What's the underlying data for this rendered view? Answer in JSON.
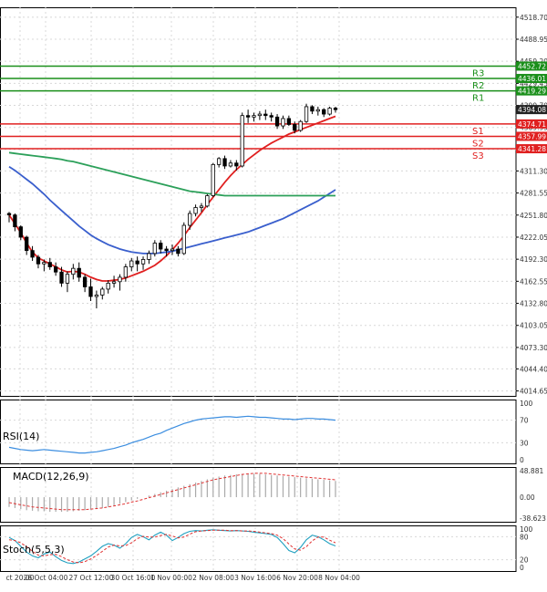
{
  "colors": {
    "candle": "#000000",
    "candle_up_fill": "#ffffff",
    "candle_down_fill": "#000000",
    "ma_fast": "#e02020",
    "ma_mid": "#3a5fcd",
    "ma_slow": "#2ca05a",
    "resistance": "#1a8f1a",
    "support": "#e02020",
    "price_tag": "#222222",
    "rsi": "#3c8ee0",
    "macd_hist": "#aaaaaa",
    "macd_signal": "#e03030",
    "stoch_k": "#20a0c0",
    "stoch_d": "#e03030",
    "grid": "#d8d8d8",
    "axis_text": "#333333"
  },
  "chart_data": {
    "type": "candlestick",
    "price_axis": {
      "ticks": [
        "4518.70",
        "4488.95",
        "4459.20",
        "4429.45",
        "4399.70",
        "4369.95",
        "4340.20",
        "4311.30",
        "4281.55",
        "4251.80",
        "4222.05",
        "4192.30",
        "4162.55",
        "4132.80",
        "4103.05",
        "4073.30",
        "4044.40",
        "4014.65"
      ],
      "ylim": [
        4008,
        4532
      ]
    },
    "time_axis": {
      "labels": [
        "ct 20:00",
        "26 Oct 04:00",
        "27 Oct 12:00",
        "30 Oct 16:00",
        "1 Nov 00:00",
        "2 Nov 08:00",
        "3 Nov 16:00",
        "6 Nov 20:00",
        "8 Nov 04:00"
      ]
    },
    "candles": [
      [
        4254,
        4256,
        4242,
        4252
      ],
      [
        4252,
        4254,
        4230,
        4236
      ],
      [
        4236,
        4238,
        4218,
        4222
      ],
      [
        4222,
        4224,
        4198,
        4204
      ],
      [
        4204,
        4210,
        4190,
        4195
      ],
      [
        4195,
        4198,
        4180,
        4186
      ],
      [
        4186,
        4192,
        4176,
        4188
      ],
      [
        4188,
        4194,
        4178,
        4182
      ],
      [
        4182,
        4188,
        4170,
        4175
      ],
      [
        4175,
        4182,
        4155,
        4160
      ],
      [
        4160,
        4176,
        4148,
        4172
      ],
      [
        4172,
        4186,
        4165,
        4180
      ],
      [
        4180,
        4188,
        4162,
        4168
      ],
      [
        4168,
        4172,
        4148,
        4155
      ],
      [
        4155,
        4166,
        4136,
        4142
      ],
      [
        4142,
        4150,
        4126,
        4144
      ],
      [
        4144,
        4155,
        4138,
        4152
      ],
      [
        4152,
        4164,
        4146,
        4160
      ],
      [
        4160,
        4170,
        4154,
        4162
      ],
      [
        4162,
        4172,
        4150,
        4168
      ],
      [
        4168,
        4186,
        4162,
        4182
      ],
      [
        4182,
        4194,
        4176,
        4190
      ],
      [
        4190,
        4196,
        4176,
        4186
      ],
      [
        4186,
        4196,
        4178,
        4192
      ],
      [
        4192,
        4204,
        4186,
        4200
      ],
      [
        4200,
        4218,
        4196,
        4214
      ],
      [
        4214,
        4218,
        4200,
        4206
      ],
      [
        4206,
        4210,
        4196,
        4204
      ],
      [
        4204,
        4212,
        4198,
        4206
      ],
      [
        4206,
        4210,
        4196,
        4200
      ],
      [
        4200,
        4242,
        4198,
        4238
      ],
      [
        4238,
        4258,
        4232,
        4254
      ],
      [
        4254,
        4266,
        4250,
        4262
      ],
      [
        4262,
        4268,
        4256,
        4264
      ],
      [
        4264,
        4280,
        4262,
        4278
      ],
      [
        4278,
        4322,
        4276,
        4320
      ],
      [
        4320,
        4330,
        4316,
        4328
      ],
      [
        4328,
        4332,
        4314,
        4318
      ],
      [
        4318,
        4326,
        4316,
        4322
      ],
      [
        4322,
        4326,
        4312,
        4318
      ],
      [
        4318,
        4390,
        4316,
        4386
      ],
      [
        4386,
        4394,
        4376,
        4384
      ],
      [
        4384,
        4390,
        4378,
        4386
      ],
      [
        4386,
        4392,
        4380,
        4388
      ],
      [
        4388,
        4394,
        4380,
        4386
      ],
      [
        4386,
        4390,
        4378,
        4384
      ],
      [
        4384,
        4388,
        4368,
        4372
      ],
      [
        4372,
        4386,
        4368,
        4382
      ],
      [
        4382,
        4386,
        4372,
        4374
      ],
      [
        4374,
        4378,
        4362,
        4366
      ],
      [
        4366,
        4380,
        4364,
        4378
      ],
      [
        4378,
        4402,
        4376,
        4398
      ],
      [
        4398,
        4400,
        4388,
        4392
      ],
      [
        4392,
        4398,
        4386,
        4394
      ],
      [
        4394,
        4396,
        4384,
        4388
      ],
      [
        4388,
        4398,
        4386,
        4396
      ],
      [
        4396,
        4398,
        4390,
        4394
      ]
    ],
    "moving_averages": [
      {
        "color_key": "ma_fast",
        "values": [
          4252,
          4240,
          4228,
          4214,
          4202,
          4194,
          4190,
          4186,
          4182,
          4178,
          4175,
          4176,
          4175,
          4172,
          4168,
          4165,
          4163,
          4163,
          4164,
          4165,
          4167,
          4170,
          4173,
          4176,
          4180,
          4184,
          4190,
          4197,
          4205,
          4214,
          4224,
          4235,
          4245,
          4255,
          4266,
          4276,
          4286,
          4296,
          4305,
          4313,
          4320,
          4327,
          4333,
          4339,
          4344,
          4349,
          4353,
          4357,
          4361,
          4364,
          4367,
          4370,
          4373,
          4376,
          4379,
          4382,
          4385
        ]
      },
      {
        "color_key": "ma_mid",
        "values": [
          4317,
          4312,
          4306,
          4300,
          4294,
          4287,
          4280,
          4272,
          4265,
          4258,
          4251,
          4244,
          4237,
          4231,
          4225,
          4220,
          4216,
          4212,
          4209,
          4206,
          4204,
          4202,
          4201,
          4200,
          4200,
          4200,
          4201,
          4202,
          4203,
          4205,
          4207,
          4209,
          4211,
          4213,
          4215,
          4217,
          4219,
          4221,
          4223,
          4225,
          4227,
          4229,
          4232,
          4235,
          4238,
          4241,
          4244,
          4247,
          4251,
          4255,
          4259,
          4263,
          4267,
          4271,
          4276,
          4281,
          4286
        ]
      },
      {
        "color_key": "ma_slow",
        "values": [
          4336,
          4335,
          4334,
          4333,
          4332,
          4331,
          4330,
          4329,
          4328,
          4327,
          4325,
          4324,
          4322,
          4320,
          4318,
          4316,
          4314,
          4312,
          4310,
          4308,
          4306,
          4304,
          4302,
          4300,
          4298,
          4296,
          4294,
          4292,
          4290,
          4288,
          4286,
          4284,
          4283,
          4282,
          4281,
          4280,
          4279,
          4278,
          4278,
          4278,
          4278,
          4278,
          4278,
          4278,
          4278,
          4278,
          4278,
          4278,
          4278,
          4278,
          4278,
          4278,
          4278,
          4278,
          4278,
          4278,
          4278
        ]
      }
    ],
    "levels": [
      {
        "label": "R3",
        "value": 4452.72,
        "tag": "4452.72",
        "kind": "resistance"
      },
      {
        "label": "R2",
        "value": 4436.01,
        "tag": "4436.01",
        "kind": "resistance"
      },
      {
        "label": "R1",
        "value": 4419.29,
        "tag": "4419.29",
        "kind": "resistance"
      },
      {
        "label": "S1",
        "value": 4374.71,
        "tag": "4374.71",
        "kind": "support"
      },
      {
        "label": "S2",
        "value": 4357.99,
        "tag": "4357.99",
        "kind": "support"
      },
      {
        "label": "S3",
        "value": 4341.28,
        "tag": "4341.28",
        "kind": "support"
      }
    ],
    "last_price": {
      "value": 4394.08,
      "tag": "4394.08"
    },
    "rsi": {
      "label": "RSI(14)",
      "ticks": [
        "100",
        "70",
        "30",
        "0"
      ],
      "ylim": [
        0,
        100
      ],
      "values": [
        22,
        20,
        18,
        17,
        16,
        17,
        18,
        17,
        16,
        15,
        14,
        13,
        12,
        12,
        13,
        14,
        16,
        18,
        20,
        23,
        26,
        30,
        33,
        36,
        40,
        44,
        47,
        52,
        56,
        60,
        64,
        67,
        70,
        72,
        73,
        74,
        75,
        76,
        76,
        75,
        76,
        77,
        76,
        75,
        75,
        74,
        73,
        72,
        72,
        71,
        72,
        73,
        73,
        72,
        72,
        71,
        70
      ]
    },
    "macd": {
      "label": "MACD(12,26,9)",
      "ticks": [
        "48.881",
        "0.00",
        "-38.623"
      ],
      "ylim": [
        -38.623,
        48.881
      ],
      "histogram": [
        -18,
        -20,
        -22,
        -24,
        -25,
        -26,
        -26,
        -27,
        -27,
        -27,
        -27,
        -26,
        -25,
        -24,
        -23,
        -22,
        -20,
        -18,
        -15,
        -12,
        -9,
        -6,
        -3,
        0,
        3,
        6,
        9,
        12,
        15,
        18,
        21,
        24,
        27,
        30,
        33,
        36,
        38,
        40,
        41,
        42,
        43,
        43,
        43,
        43,
        42,
        41,
        40,
        39,
        38,
        37,
        36,
        35,
        34,
        33,
        32,
        31,
        30
      ],
      "signal": [
        -10,
        -12,
        -14,
        -16,
        -18,
        -19,
        -20,
        -21,
        -22,
        -23,
        -23,
        -23,
        -23,
        -23,
        -22,
        -21,
        -20,
        -18,
        -16,
        -14,
        -12,
        -9,
        -7,
        -4,
        -1,
        2,
        5,
        8,
        11,
        14,
        17,
        20,
        23,
        26,
        29,
        32,
        34,
        36,
        38,
        40,
        42,
        43,
        44,
        44,
        44,
        43,
        42,
        41,
        40,
        39,
        38,
        37,
        36,
        35,
        34,
        33,
        32
      ]
    },
    "stoch": {
      "label": "Stoch(5,5,3)",
      "ticks": [
        "100",
        "80",
        "20",
        "0"
      ],
      "ylim": [
        0,
        100
      ],
      "k": [
        78,
        70,
        55,
        40,
        30,
        25,
        35,
        40,
        28,
        18,
        12,
        10,
        14,
        22,
        30,
        42,
        55,
        62,
        58,
        50,
        62,
        78,
        86,
        80,
        72,
        84,
        92,
        84,
        70,
        78,
        88,
        94,
        96,
        95,
        97,
        98,
        97,
        96,
        95,
        96,
        95,
        94,
        92,
        90,
        88,
        86,
        78,
        62,
        44,
        38,
        52,
        72,
        84,
        80,
        72,
        62,
        56
      ],
      "d": [
        72,
        70,
        64,
        54,
        42,
        32,
        30,
        33,
        34,
        28,
        20,
        14,
        12,
        15,
        22,
        31,
        42,
        53,
        58,
        56,
        57,
        64,
        75,
        81,
        79,
        79,
        83,
        86,
        82,
        77,
        79,
        87,
        93,
        95,
        96,
        97,
        97,
        97,
        96,
        96,
        95,
        95,
        94,
        92,
        90,
        88,
        84,
        75,
        61,
        48,
        45,
        54,
        69,
        79,
        79,
        71,
        64
      ]
    }
  }
}
